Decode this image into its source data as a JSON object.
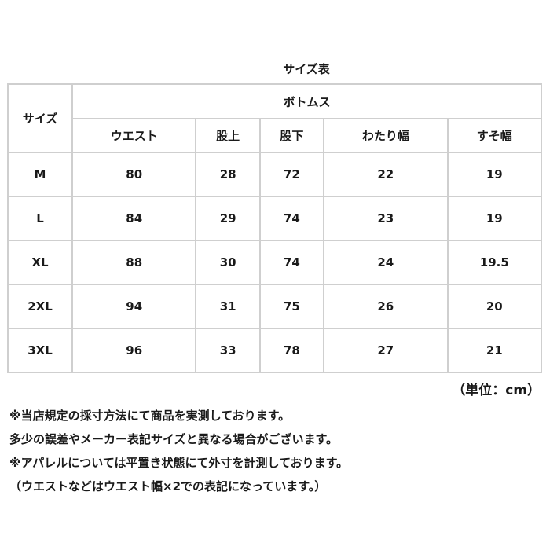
{
  "title": "サイズ表",
  "table": {
    "size_header": "サイズ",
    "group_header": "ボトムス",
    "columns": [
      "ウエスト",
      "股上",
      "股下",
      "わたり幅",
      "すそ幅"
    ],
    "rows": [
      {
        "size": "M",
        "values": [
          "80",
          "28",
          "72",
          "22",
          "19"
        ]
      },
      {
        "size": "L",
        "values": [
          "84",
          "29",
          "74",
          "23",
          "19"
        ]
      },
      {
        "size": "XL",
        "values": [
          "88",
          "30",
          "74",
          "24",
          "19.5"
        ]
      },
      {
        "size": "2XL",
        "values": [
          "94",
          "31",
          "75",
          "26",
          "20"
        ]
      },
      {
        "size": "3XL",
        "values": [
          "96",
          "33",
          "78",
          "27",
          "21"
        ]
      }
    ]
  },
  "unit": "（単位：cm）",
  "notes": [
    "※当店規定の採寸方法にて商品を実測しております。",
    "多少の誤差やメーカー表記サイズと異なる場合がございます。",
    "※アパレルについては平置き状態にて外寸を計測しております。",
    "（ウエストなどはウエスト幅×2での表記になっています。）"
  ]
}
